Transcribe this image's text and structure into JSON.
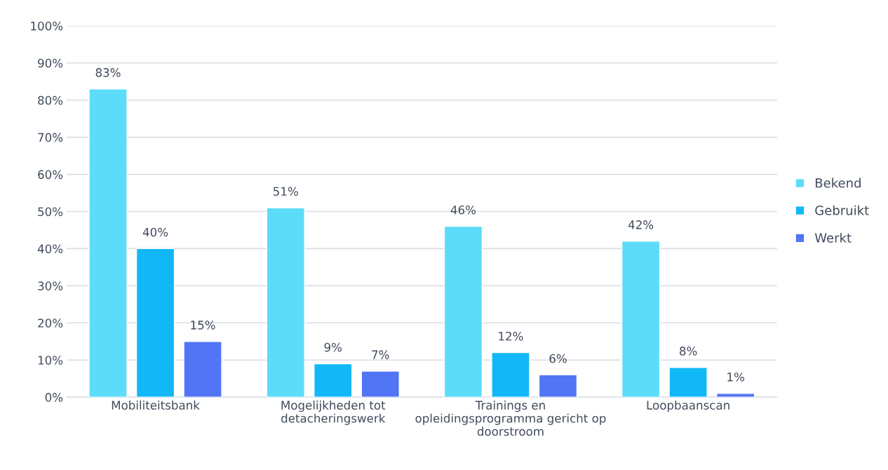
{
  "chart_data": {
    "type": "bar",
    "categories": [
      "Mobiliteitsbank",
      "Mogelijkheden tot detacheringswerk",
      "Trainings en opleidingsprogramma gericht op doorstroom",
      "Loopbaanscan"
    ],
    "series": [
      {
        "name": "Bekend",
        "color": "#5cdcf8",
        "values": [
          83,
          51,
          46,
          42
        ],
        "value_labels": [
          "83%",
          "51%",
          "46%",
          "42%"
        ]
      },
      {
        "name": "Gebruikt",
        "color": "#12b8f5",
        "values": [
          40,
          9,
          12,
          8
        ],
        "value_labels": [
          "40%",
          "9%",
          "12%",
          "8%"
        ]
      },
      {
        "name": "Werkt",
        "color": "#5275f5",
        "values": [
          15,
          7,
          6,
          1
        ],
        "value_labels": [
          "15%",
          "7%",
          "6%",
          "1%"
        ]
      }
    ],
    "ylim": [
      0,
      100
    ],
    "yticks": [
      {
        "value": 0,
        "label": "0%"
      },
      {
        "value": 10,
        "label": "10%"
      },
      {
        "value": 20,
        "label": "20%"
      },
      {
        "value": 30,
        "label": "30%"
      },
      {
        "value": 40,
        "label": "40%"
      },
      {
        "value": 50,
        "label": "50%"
      },
      {
        "value": 60,
        "label": "60%"
      },
      {
        "value": 70,
        "label": "70%"
      },
      {
        "value": 80,
        "label": "80%"
      },
      {
        "value": 90,
        "label": "90%"
      },
      {
        "value": 100,
        "label": "100%"
      }
    ],
    "grid": "y",
    "legend": "right"
  }
}
